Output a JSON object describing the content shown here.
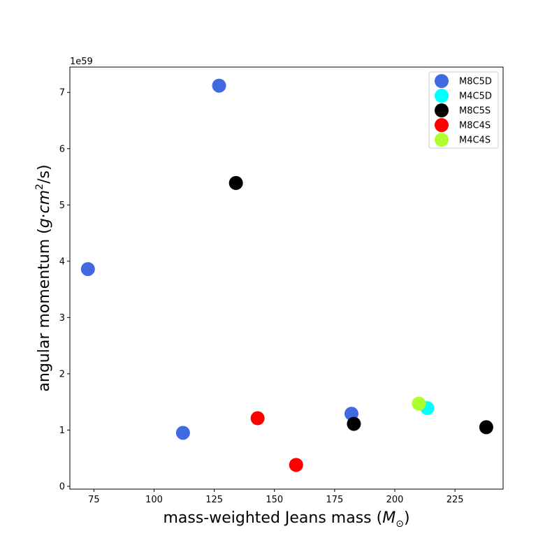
{
  "chart_data": {
    "type": "scatter",
    "title": "",
    "xlabel": "mass-weighted Jeans mass ($M_\\odot$)",
    "ylabel": "angular momentum ($g \\cdot cm^2/s$)",
    "xlabel_display": {
      "pre": "mass-weighted Jeans mass (",
      "sym": "M",
      "sub": "⊙",
      "post": ")"
    },
    "ylabel_display": {
      "pre": "angular momentum (",
      "g": "g",
      "dot": "·",
      "cm": "cm",
      "sup": "2",
      "post": "/s)"
    },
    "y_offset_label": "1e59",
    "xlim": [
      65,
      245
    ],
    "ylim": [
      -0.05,
      7.45
    ],
    "xticks": [
      75,
      100,
      125,
      150,
      175,
      200,
      225
    ],
    "yticks": [
      0,
      1,
      2,
      3,
      4,
      5,
      6,
      7
    ],
    "grid": false,
    "legend_position": "top-right",
    "series": [
      {
        "name": "M8C5D",
        "color": "#4169e1",
        "points": [
          [
            72.5,
            3.86
          ],
          [
            127,
            7.12
          ],
          [
            112,
            0.95
          ],
          [
            182,
            1.29
          ]
        ]
      },
      {
        "name": "M4C5D",
        "color": "#00ffff",
        "points": [
          [
            213.5,
            1.39
          ]
        ]
      },
      {
        "name": "M8C5S",
        "color": "#000000",
        "points": [
          [
            134,
            5.39
          ],
          [
            183,
            1.11
          ],
          [
            238,
            1.05
          ]
        ]
      },
      {
        "name": "M8C4S",
        "color": "#ff0000",
        "points": [
          [
            143,
            1.21
          ],
          [
            159,
            0.38
          ]
        ]
      },
      {
        "name": "M4C4S",
        "color": "#adff2f",
        "points": [
          [
            210,
            1.47
          ]
        ]
      }
    ]
  }
}
